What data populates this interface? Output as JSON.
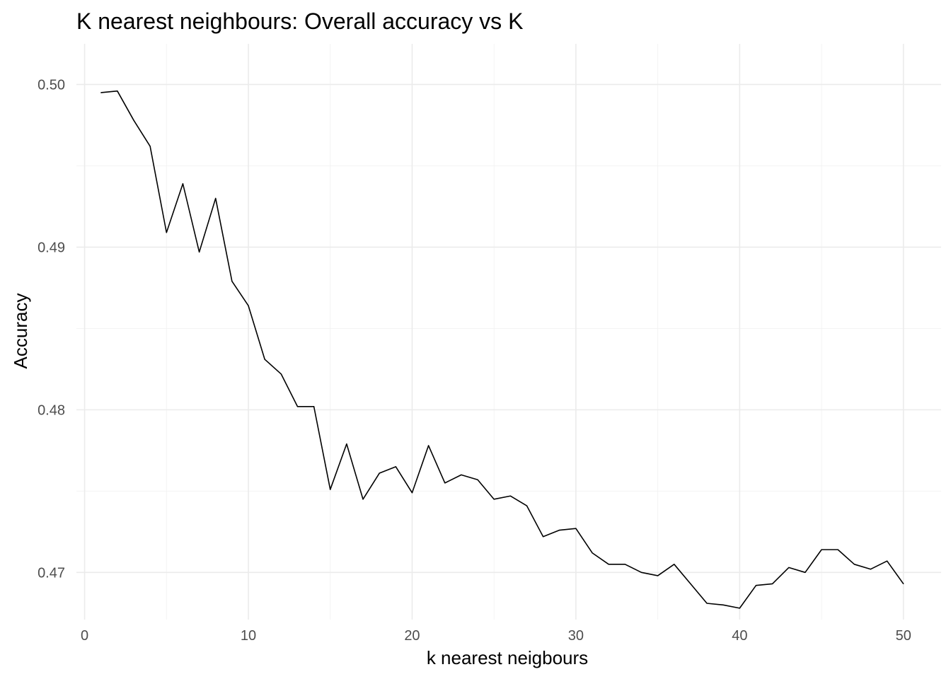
{
  "chart_data": {
    "type": "line",
    "title": "K nearest neighbours: Overall accuracy vs K",
    "xlabel": "k nearest neigbours",
    "ylabel": "Accuracy",
    "xlim": [
      -0.5,
      52.3
    ],
    "ylim": [
      0.4671,
      0.5025
    ],
    "x_ticks": [
      0,
      10,
      20,
      30,
      40,
      50
    ],
    "x_tick_labels": [
      "0",
      "10",
      "20",
      "30",
      "40",
      "50"
    ],
    "y_ticks": [
      0.47,
      0.48,
      0.49,
      0.5
    ],
    "y_tick_labels": [
      "0.47",
      "0.48",
      "0.49",
      "0.50"
    ],
    "x_minor_ticks": [
      5,
      15,
      25,
      35,
      45
    ],
    "y_minor_ticks": [
      0.475,
      0.485,
      0.495
    ],
    "grid": true,
    "legend": "none",
    "series": [
      {
        "color": "#000000",
        "x": [
          1,
          2,
          3,
          4,
          5,
          6,
          7,
          8,
          9,
          10,
          11,
          12,
          13,
          14,
          15,
          16,
          17,
          18,
          19,
          20,
          21,
          22,
          23,
          24,
          25,
          26,
          27,
          28,
          29,
          30,
          31,
          32,
          33,
          34,
          35,
          36,
          37,
          38,
          39,
          40,
          41,
          42,
          43,
          44,
          45,
          46,
          47,
          48,
          49,
          50
        ],
        "values": [
          0.4995,
          0.4996,
          0.4978,
          0.4962,
          0.4909,
          0.4939,
          0.4897,
          0.493,
          0.4879,
          0.4864,
          0.4831,
          0.4822,
          0.4802,
          0.4802,
          0.4751,
          0.4779,
          0.4745,
          0.4761,
          0.4765,
          0.4749,
          0.4778,
          0.4755,
          0.476,
          0.4757,
          0.4745,
          0.4747,
          0.4741,
          0.4722,
          0.4726,
          0.4727,
          0.4712,
          0.4705,
          0.4705,
          0.47,
          0.4698,
          0.4705,
          0.4693,
          0.4681,
          0.468,
          0.4678,
          0.4692,
          0.4693,
          0.4703,
          0.47,
          0.4714,
          0.4714,
          0.4705,
          0.4702,
          0.4707,
          0.4693
        ]
      }
    ]
  }
}
